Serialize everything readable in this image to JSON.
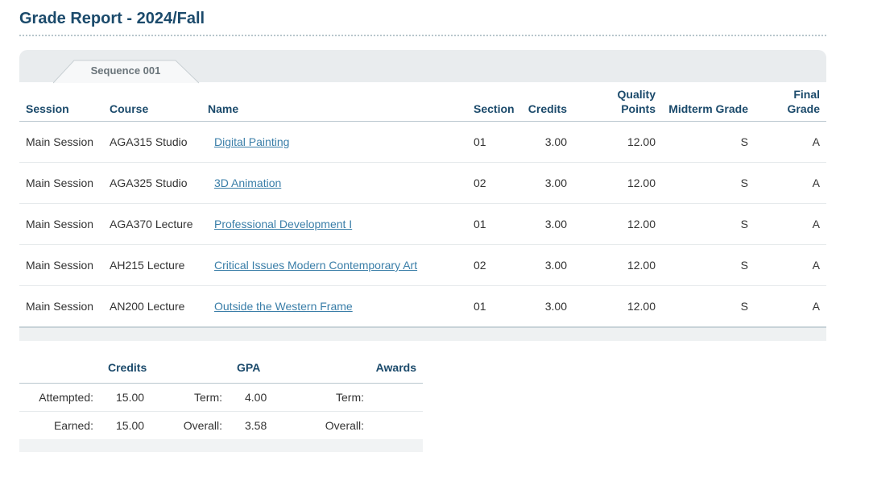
{
  "header": {
    "title": "Grade Report - 2024/Fall"
  },
  "tab": "Sequence 001",
  "grades": {
    "columns": [
      "Session",
      "Course",
      "Name",
      "Section",
      "Credits",
      "Quality Points",
      "Midterm Grade",
      "Final Grade"
    ],
    "rows": [
      [
        "Main Session",
        "AGA315 Studio",
        "Digital Painting",
        "01",
        "3.00",
        "12.00",
        "S",
        "A"
      ],
      [
        "Main Session",
        "AGA325 Studio",
        "3D Animation",
        "02",
        "3.00",
        "12.00",
        "S",
        "A"
      ],
      [
        "Main Session",
        "AGA370 Lecture",
        "Professional Development I",
        "01",
        "3.00",
        "12.00",
        "S",
        "A"
      ],
      [
        "Main Session",
        "AH215 Lecture",
        "Critical Issues Modern Contemporary Art",
        "02",
        "3.00",
        "12.00",
        "S",
        "A"
      ],
      [
        "Main Session",
        "AN200 Lecture",
        "Outside the Western Frame",
        "01",
        "3.00",
        "12.00",
        "S",
        "A"
      ]
    ]
  },
  "summary": {
    "headers": {
      "credits": "Credits",
      "gpa": "GPA",
      "awards": "Awards"
    },
    "rows": [
      {
        "label": "Attempted:",
        "credits": "15.00",
        "gpa_label": "Term:",
        "gpa": "4.00",
        "awards_label": "Term:"
      },
      {
        "label": "Earned:",
        "credits": "15.00",
        "gpa_label": "Overall:",
        "gpa": "3.58",
        "awards_label": "Overall:"
      }
    ]
  }
}
